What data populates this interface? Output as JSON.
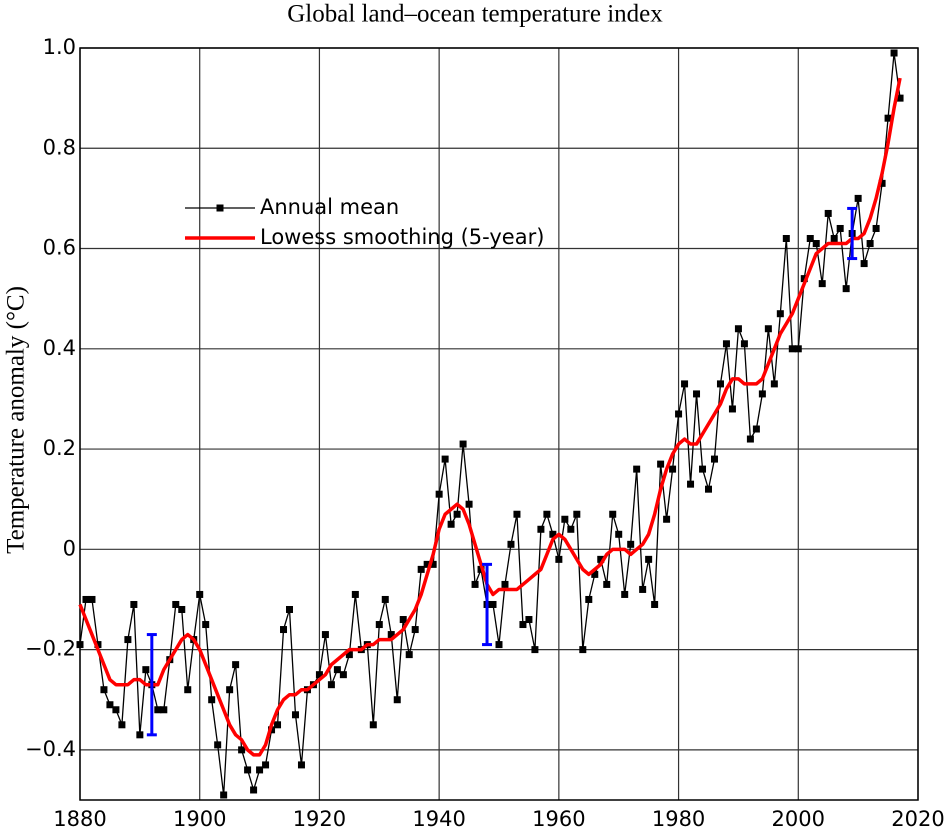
{
  "chart_data": {
    "type": "line",
    "title": "Global land–ocean temperature index",
    "ylabel": "Temperature anomaly (°C)",
    "x": [
      1880,
      1881,
      1882,
      1883,
      1884,
      1885,
      1886,
      1887,
      1888,
      1889,
      1890,
      1891,
      1892,
      1893,
      1894,
      1895,
      1896,
      1897,
      1898,
      1899,
      1900,
      1901,
      1902,
      1903,
      1904,
      1905,
      1906,
      1907,
      1908,
      1909,
      1910,
      1911,
      1912,
      1913,
      1914,
      1915,
      1916,
      1917,
      1918,
      1919,
      1920,
      1921,
      1922,
      1923,
      1924,
      1925,
      1926,
      1927,
      1928,
      1929,
      1930,
      1931,
      1932,
      1933,
      1934,
      1935,
      1936,
      1937,
      1938,
      1939,
      1940,
      1941,
      1942,
      1943,
      1944,
      1945,
      1946,
      1947,
      1948,
      1949,
      1950,
      1951,
      1952,
      1953,
      1954,
      1955,
      1956,
      1957,
      1958,
      1959,
      1960,
      1961,
      1962,
      1963,
      1964,
      1965,
      1966,
      1967,
      1968,
      1969,
      1970,
      1971,
      1972,
      1973,
      1974,
      1975,
      1976,
      1977,
      1978,
      1979,
      1980,
      1981,
      1982,
      1983,
      1984,
      1985,
      1986,
      1987,
      1988,
      1989,
      1990,
      1991,
      1992,
      1993,
      1994,
      1995,
      1996,
      1997,
      1998,
      1999,
      2000,
      2001,
      2002,
      2003,
      2004,
      2005,
      2006,
      2007,
      2008,
      2009,
      2010,
      2011,
      2012,
      2013,
      2014,
      2015,
      2016,
      2017
    ],
    "series": [
      {
        "name": "Annual mean",
        "color": "#000000",
        "marker": "square",
        "values": [
          -0.19,
          -0.1,
          -0.1,
          -0.19,
          -0.28,
          -0.31,
          -0.32,
          -0.35,
          -0.18,
          -0.11,
          -0.37,
          -0.24,
          -0.27,
          -0.32,
          -0.32,
          -0.22,
          -0.11,
          -0.12,
          -0.28,
          -0.18,
          -0.09,
          -0.15,
          -0.3,
          -0.39,
          -0.49,
          -0.28,
          -0.23,
          -0.4,
          -0.44,
          -0.48,
          -0.44,
          -0.43,
          -0.36,
          -0.35,
          -0.16,
          -0.12,
          -0.33,
          -0.43,
          -0.28,
          -0.27,
          -0.25,
          -0.17,
          -0.27,
          -0.24,
          -0.25,
          -0.21,
          -0.09,
          -0.2,
          -0.19,
          -0.35,
          -0.15,
          -0.1,
          -0.17,
          -0.3,
          -0.14,
          -0.21,
          -0.16,
          -0.04,
          -0.03,
          -0.03,
          0.11,
          0.18,
          0.05,
          0.07,
          0.21,
          0.09,
          -0.07,
          -0.04,
          -0.11,
          -0.11,
          -0.19,
          -0.07,
          0.01,
          0.07,
          -0.15,
          -0.14,
          -0.2,
          0.04,
          0.07,
          0.03,
          -0.02,
          0.06,
          0.04,
          0.07,
          -0.2,
          -0.1,
          -0.05,
          -0.02,
          -0.07,
          0.07,
          0.03,
          -0.09,
          0.01,
          0.16,
          -0.08,
          -0.02,
          -0.11,
          0.17,
          0.06,
          0.16,
          0.27,
          0.33,
          0.13,
          0.31,
          0.16,
          0.12,
          0.18,
          0.33,
          0.41,
          0.28,
          0.44,
          0.41,
          0.22,
          0.24,
          0.31,
          0.44,
          0.33,
          0.47,
          0.62,
          0.4,
          0.4,
          0.54,
          0.62,
          0.61,
          0.53,
          0.67,
          0.62,
          0.64,
          0.52,
          0.63,
          0.7,
          0.57,
          0.61,
          0.64,
          0.73,
          0.86,
          0.99,
          0.9
        ]
      },
      {
        "name": "Lowess smoothing (5-year)",
        "color": "#ff0000",
        "values": [
          -0.11,
          -0.14,
          -0.17,
          -0.2,
          -0.23,
          -0.26,
          -0.27,
          -0.27,
          -0.27,
          -0.26,
          -0.26,
          -0.27,
          -0.27,
          -0.27,
          -0.24,
          -0.22,
          -0.2,
          -0.18,
          -0.17,
          -0.18,
          -0.2,
          -0.23,
          -0.26,
          -0.29,
          -0.32,
          -0.35,
          -0.37,
          -0.38,
          -0.4,
          -0.41,
          -0.41,
          -0.39,
          -0.35,
          -0.32,
          -0.3,
          -0.29,
          -0.29,
          -0.28,
          -0.28,
          -0.27,
          -0.26,
          -0.25,
          -0.23,
          -0.22,
          -0.21,
          -0.2,
          -0.2,
          -0.2,
          -0.19,
          -0.19,
          -0.18,
          -0.18,
          -0.18,
          -0.17,
          -0.16,
          -0.14,
          -0.12,
          -0.09,
          -0.05,
          -0.01,
          0.04,
          0.07,
          0.08,
          0.09,
          0.08,
          0.05,
          0.01,
          -0.03,
          -0.07,
          -0.09,
          -0.08,
          -0.08,
          -0.08,
          -0.08,
          -0.07,
          -0.06,
          -0.05,
          -0.04,
          -0.01,
          0.02,
          0.03,
          0.02,
          0.0,
          -0.02,
          -0.04,
          -0.05,
          -0.04,
          -0.03,
          -0.01,
          0.0,
          0.0,
          0.0,
          -0.01,
          0.0,
          0.01,
          0.03,
          0.07,
          0.12,
          0.16,
          0.19,
          0.21,
          0.22,
          0.21,
          0.21,
          0.23,
          0.25,
          0.27,
          0.29,
          0.32,
          0.34,
          0.34,
          0.33,
          0.33,
          0.33,
          0.34,
          0.37,
          0.4,
          0.43,
          0.45,
          0.47,
          0.5,
          0.53,
          0.56,
          0.59,
          0.6,
          0.61,
          0.61,
          0.61,
          0.61,
          0.62,
          0.62,
          0.63,
          0.66,
          0.7,
          0.75,
          0.81,
          0.88,
          0.94
        ]
      }
    ],
    "error_bars": [
      {
        "x": 1892,
        "value": -0.27,
        "error": 0.1
      },
      {
        "x": 1948,
        "value": -0.11,
        "error": 0.08
      },
      {
        "x": 2009,
        "value": 0.63,
        "error": 0.05
      }
    ],
    "error_bar_color": "#0000ff",
    "xlim": [
      1880,
      2020
    ],
    "xticks": [
      1880,
      1900,
      1920,
      1940,
      1960,
      1980,
      2000,
      2020
    ],
    "ylim": [
      -0.5,
      1.0
    ],
    "yticks": [
      {
        "value": 1.0,
        "label": "1.0"
      },
      0.8,
      0.6,
      0.4,
      0.2,
      0,
      {
        "value": -0.2,
        "label": "−0.2"
      },
      {
        "value": -0.4,
        "label": "−0.4"
      }
    ],
    "grid": true,
    "legend": "upper left"
  }
}
